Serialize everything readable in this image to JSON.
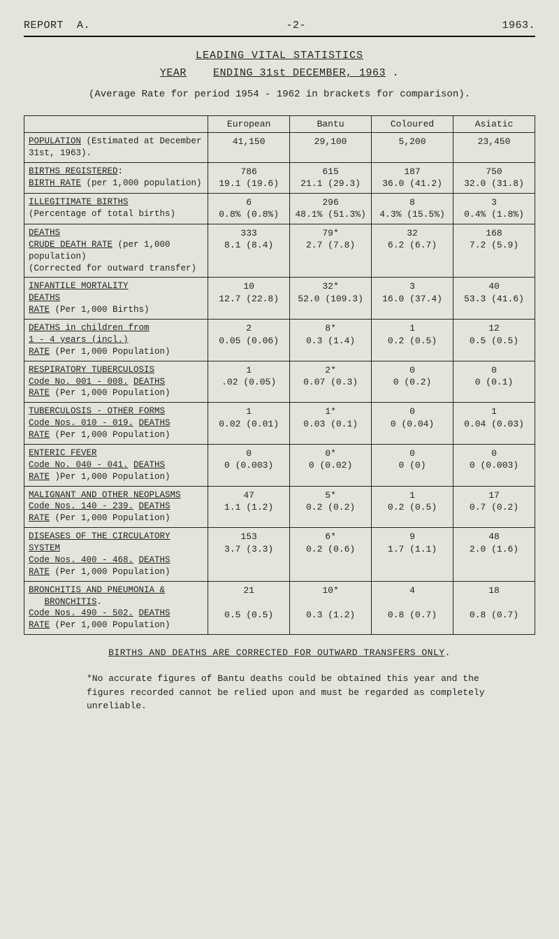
{
  "header": {
    "left": "REPORT  A.",
    "center": "-2-",
    "right": "1963."
  },
  "titles": {
    "main": "LEADING  VITAL  STATISTICS",
    "sub_prefix": "YEAR",
    "sub_mid": "ENDING  31st  DECEMBER,  1963",
    "sub_suffix": ".",
    "avg": "(Average Rate for period 1954 - 1962 in brackets for comparison)."
  },
  "table": {
    "columns": [
      "",
      "European",
      "Bantu",
      "Coloured",
      "Asiatic"
    ],
    "rows": [
      {
        "label_html": "<span class='ul'>POPULATION</span> (Estimated at December 31st, 1963).",
        "cells": [
          "41,150",
          "29,100",
          "5,200",
          "23,450"
        ]
      },
      {
        "label_html": "<span class='ul'>BIRTHS  REGISTERED</span>:<br><span class='ul'>BIRTH  RATE</span> (per 1,000 population)",
        "cells": [
          "786\n19.1 (19.6)",
          "615\n21.1 (29.3)",
          "187\n36.0 (41.2)",
          "750\n32.0 (31.8)"
        ]
      },
      {
        "label_html": "<span class='ul'>ILLEGITIMATE  BIRTHS</span><br>(Percentage of total births)",
        "cells": [
          "6\n0.8% (0.8%)",
          "296\n48.1% (51.3%)",
          "8\n4.3% (15.5%)",
          "3\n0.4% (1.8%)"
        ]
      },
      {
        "label_html": "<span class='ul'>DEATHS</span><br><span class='ul'>CRUDE DEATH RATE</span> (per 1,000 population)<br>(Corrected for outward transfer)",
        "cells": [
          "333\n8.1 (8.4)",
          "79*\n2.7 (7.8)",
          "32\n6.2 (6.7)",
          "168\n7.2 (5.9)"
        ]
      },
      {
        "label_html": "<span class='ul'>INFANTILE  MORTALITY</span><br><span class='ul'>DEATHS</span><br><span class='ul'>RATE</span> (Per 1,000 Births)",
        "cells": [
          "10\n12.7 (22.8)",
          "32*\n52.0 (109.3)",
          "3\n16.0 (37.4)",
          "40\n53.3 (41.6)"
        ]
      },
      {
        "label_html": "<span class='ul'>DEATHS in children from</span><br><span class='ul'>1 - 4 years (incl.)</span><br><span class='ul'>RATE</span> (Per 1,000 Population)",
        "cells": [
          "2\n0.05 (0.06)",
          "8*\n0.3 (1.4)",
          "1\n0.2 (0.5)",
          "12\n0.5 (0.5)"
        ]
      },
      {
        "label_html": "<span class='ul'>RESPIRATORY  TUBERCULOSIS</span><br><span class='ul'>Code No. 001 - 008.</span>  <span class='ul'>DEATHS</span><br><span class='ul'>RATE</span> (Per 1,000 Population)",
        "cells": [
          "1\n.02 (0.05)",
          "2*\n0.07 (0.3)",
          "0\n0 (0.2)",
          "0\n0 (0.1)"
        ]
      },
      {
        "label_html": "<span class='ul'>TUBERCULOSIS - OTHER FORMS</span><br><span class='ul'>Code Nos. 010 - 019.</span> <span class='ul'>DEATHS</span><br><span class='ul'>RATE</span> (Per 1,000 Population)",
        "cells": [
          "1\n0.02 (0.01)",
          "1*\n0.03 (0.1)",
          "0\n0 (0.04)",
          "1\n0.04 (0.03)"
        ]
      },
      {
        "label_html": "<span class='ul'>ENTERIC  FEVER</span><br><span class='ul'>Code No. 040 - 041.</span> <span class='ul'>DEATHS</span><br><span class='ul'>RATE</span> )Per 1,000 Population)",
        "cells": [
          "0\n0 (0.003)",
          "0*\n0 (0.02)",
          "0\n0 (0)",
          "0\n0 (0.003)"
        ]
      },
      {
        "label_html": "<span class='ul'>MALIGNANT  AND  OTHER  NEOPLASMS</span><br><span class='ul'>Code Nos. 140 - 239.</span>  <span class='ul'>DEATHS</span><br><span class='ul'>RATE</span> (Per 1,000 Population)",
        "cells": [
          "47\n1.1 (1.2)",
          "5*\n0.2 (0.2)",
          "1\n0.2 (0.5)",
          "17\n0.7 (0.2)"
        ]
      },
      {
        "label_html": "<span class='ul'>DISEASES OF THE CIRCULATORY SYSTEM</span><br><span class='ul'>Code Nos. 400 - 468.</span>  <span class='ul'>DEATHS</span><br><span class='ul'>RATE</span> (Per 1,000 Population)",
        "cells": [
          "153\n3.7 (3.3)",
          "6*\n0.2 (0.6)",
          "9\n1.7 (1.1)",
          "48\n2.0 (1.6)"
        ]
      },
      {
        "label_html": "<span class='ul'>BRONCHITIS AND PNEUMONIA &amp;</span><br>&nbsp;&nbsp;&nbsp;<span class='ul'>BRONCHITIS</span>.<br><span class='ul'>Code Nos. 490 - 502.</span>  <span class='ul'>DEATHS</span><br><span class='ul'>RATE</span> (Per 1,000 Population)",
        "cells": [
          "21\n\n0.5 (0.5)",
          "10*\n\n0.3 (1.2)",
          "4\n\n0.8 (0.7)",
          "18\n\n0.8 (0.7)"
        ]
      }
    ]
  },
  "corrected_line_parts": {
    "a": "BIRTHS  AND  DEATHS  ARE  CORRECTED  FOR  OUTWARD  TRANSFERS  ONLY",
    "b": "."
  },
  "footnote": "*No accurate figures of Bantu deaths could be obtained this year and the figures recorded cannot be relied upon and must be regarded as completely unreliable."
}
